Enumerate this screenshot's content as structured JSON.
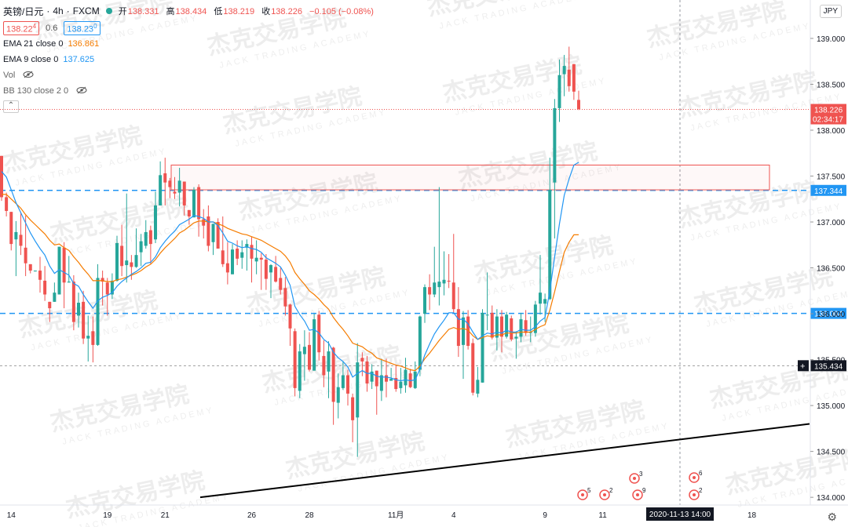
{
  "header": {
    "symbol": "英镑/日元",
    "interval": "4h",
    "source": "FXCM",
    "ohlc": [
      {
        "k": "开",
        "v": "138.331"
      },
      {
        "k": "高",
        "v": "138.434"
      },
      {
        "k": "低",
        "v": "138.219"
      },
      {
        "k": "收",
        "v": "138.226"
      }
    ],
    "change": "−0.105 (−0.08%)",
    "bid": "138.22",
    "bid_sup": "4",
    "spread": "0.6",
    "ask": "138.23",
    "ask_sup": "0"
  },
  "indicators": [
    {
      "name": "EMA 21 close 0",
      "value": "136.861",
      "color": "#f57c00"
    },
    {
      "name": "EMA 9 close 0",
      "value": "137.625",
      "color": "#2196f3"
    },
    {
      "name": "Vol",
      "value": "",
      "color": "#555555"
    },
    {
      "name": "BB 130 close 2 0",
      "value": "",
      "color": "#555555"
    }
  ],
  "currency_label": "JPY",
  "watermark_cn": "杰克交易学院",
  "watermark_en": "JACK TRADING ACADEMY",
  "chart_data": {
    "type": "candlestick",
    "ylim": [
      133.95,
      139.35
    ],
    "yticks": [
      "134.000",
      "134.500",
      "135.000",
      "135.500",
      "136.000",
      "136.500",
      "137.000",
      "137.500",
      "138.000",
      "138.500",
      "139.000"
    ],
    "xticks": [
      {
        "label": "14",
        "i": 2
      },
      {
        "label": "19",
        "i": 22
      },
      {
        "label": "21",
        "i": 34
      },
      {
        "label": "26",
        "i": 52
      },
      {
        "label": "28",
        "i": 64
      },
      {
        "label": "11月",
        "i": 82
      },
      {
        "label": "4",
        "i": 94
      },
      {
        "label": "9",
        "i": 113
      },
      {
        "label": "11",
        "i": 125
      },
      {
        "label": "16",
        "i": 143
      },
      {
        "label": "18",
        "i": 156
      }
    ],
    "ohlc": [
      [
        137.72,
        137.72,
        137.23,
        137.27
      ],
      [
        137.27,
        137.32,
        137.06,
        137.12
      ],
      [
        137.11,
        137.11,
        136.69,
        136.76
      ],
      [
        136.81,
        137.01,
        136.41,
        136.89
      ],
      [
        136.86,
        137.11,
        136.64,
        136.74
      ],
      [
        136.72,
        137.07,
        136.41,
        136.55
      ],
      [
        136.54,
        136.54,
        136.44,
        136.47
      ],
      [
        136.47,
        136.47,
        136.46,
        136.47
      ],
      [
        136.47,
        136.62,
        136.23,
        136.37
      ],
      [
        136.36,
        136.52,
        136.14,
        136.21
      ],
      [
        136.13,
        136.13,
        135.91,
        136.06
      ],
      [
        136.13,
        136.34,
        136.13,
        136.23
      ],
      [
        136.21,
        136.73,
        136.21,
        136.73
      ],
      [
        136.72,
        136.78,
        136.06,
        136.34
      ],
      [
        136.34,
        136.63,
        136.34,
        136.35
      ],
      [
        136.35,
        136.42,
        135.82,
        135.91
      ],
      [
        135.98,
        136.23,
        135.85,
        136.12
      ],
      [
        136.13,
        136.25,
        135.67,
        135.73
      ],
      [
        135.73,
        135.98,
        135.48,
        135.76
      ],
      [
        135.81,
        135.97,
        135.47,
        135.66
      ],
      [
        135.66,
        136.54,
        135.65,
        136.39
      ],
      [
        136.39,
        136.47,
        136.09,
        136.35
      ],
      [
        136.34,
        136.39,
        135.98,
        136.21
      ],
      [
        136.21,
        136.44,
        136.16,
        136.36
      ],
      [
        136.36,
        136.85,
        136.35,
        136.77
      ],
      [
        136.74,
        136.97,
        136.41,
        136.52
      ],
      [
        136.53,
        137.31,
        136.34,
        136.58
      ],
      [
        136.56,
        136.64,
        136.37,
        136.51
      ],
      [
        136.51,
        136.93,
        136.5,
        136.64
      ],
      [
        136.67,
        136.87,
        136.52,
        136.79
      ],
      [
        136.74,
        137.02,
        136.71,
        136.89
      ],
      [
        136.91,
        136.96,
        136.54,
        136.76
      ],
      [
        136.81,
        137.33,
        136.77,
        137.18
      ],
      [
        137.18,
        137.66,
        137.18,
        137.51
      ],
      [
        137.53,
        137.7,
        137.18,
        137.43
      ],
      [
        137.45,
        137.48,
        137.26,
        137.38
      ],
      [
        137.33,
        137.49,
        137.25,
        137.31
      ],
      [
        137.32,
        137.59,
        137.17,
        137.45
      ],
      [
        137.44,
        137.44,
        137.07,
        137.18
      ],
      [
        137.13,
        137.13,
        136.97,
        137.06
      ],
      [
        137.05,
        137.38,
        137.05,
        137.35
      ],
      [
        137.38,
        137.41,
        136.84,
        137.03
      ],
      [
        137.03,
        137.14,
        136.82,
        136.96
      ],
      [
        137.06,
        137.18,
        136.68,
        136.74
      ],
      [
        136.78,
        136.98,
        136.64,
        136.98
      ],
      [
        137.0,
        137.04,
        136.71,
        136.71
      ],
      [
        136.69,
        137.06,
        136.51,
        136.54
      ],
      [
        136.55,
        136.78,
        136.32,
        136.45
      ],
      [
        136.43,
        136.76,
        136.43,
        136.7
      ],
      [
        136.71,
        136.8,
        136.53,
        136.6
      ],
      [
        136.61,
        136.8,
        136.49,
        136.67
      ],
      [
        136.72,
        136.81,
        136.47,
        136.76
      ],
      [
        136.75,
        136.84,
        136.34,
        136.6
      ],
      [
        136.57,
        136.8,
        136.43,
        136.61
      ],
      [
        136.61,
        136.66,
        136.26,
        136.59
      ],
      [
        136.59,
        136.65,
        136.26,
        136.38
      ],
      [
        136.45,
        136.54,
        136.17,
        136.53
      ],
      [
        136.51,
        136.63,
        136.34,
        136.35
      ],
      [
        136.39,
        136.5,
        136.21,
        136.26
      ],
      [
        136.28,
        136.4,
        135.98,
        136.08
      ],
      [
        136.1,
        136.11,
        135.65,
        135.84
      ],
      [
        135.81,
        135.84,
        135.1,
        135.19
      ],
      [
        135.16,
        135.67,
        135.08,
        135.59
      ],
      [
        135.56,
        135.82,
        135.27,
        135.64
      ],
      [
        135.66,
        135.8,
        135.37,
        135.39
      ],
      [
        135.38,
        136.0,
        135.38,
        135.94
      ],
      [
        135.99,
        136.03,
        135.49,
        135.58
      ],
      [
        135.54,
        135.71,
        135.2,
        135.33
      ],
      [
        135.37,
        135.7,
        135.08,
        135.59
      ],
      [
        135.63,
        135.64,
        134.79,
        135.04
      ],
      [
        135.03,
        135.35,
        134.86,
        135.2
      ],
      [
        135.19,
        135.48,
        135.17,
        135.33
      ],
      [
        135.33,
        135.39,
        135.0,
        135.13
      ],
      [
        135.09,
        135.13,
        134.6,
        134.84
      ],
      [
        134.87,
        135.68,
        134.44,
        135.47
      ],
      [
        135.52,
        135.58,
        135.32,
        135.48
      ],
      [
        135.48,
        135.54,
        135.15,
        135.24
      ],
      [
        135.26,
        135.45,
        135.18,
        135.37
      ],
      [
        135.38,
        135.38,
        134.9,
        135.21
      ],
      [
        135.16,
        135.51,
        135.05,
        135.33
      ],
      [
        135.33,
        135.51,
        135.09,
        135.26
      ],
      [
        135.27,
        135.41,
        135.27,
        135.29
      ],
      [
        135.3,
        135.44,
        135.15,
        135.18
      ],
      [
        135.19,
        135.41,
        135.13,
        135.26
      ],
      [
        135.22,
        135.52,
        135.14,
        135.39
      ],
      [
        135.35,
        135.4,
        135.19,
        135.2
      ],
      [
        135.19,
        135.48,
        135.18,
        135.37
      ],
      [
        135.39,
        135.98,
        135.32,
        135.97
      ],
      [
        136.0,
        136.32,
        135.9,
        136.29
      ],
      [
        136.29,
        136.43,
        136.04,
        136.21
      ],
      [
        136.21,
        136.73,
        136.18,
        136.34
      ],
      [
        136.29,
        137.38,
        136.09,
        136.35
      ],
      [
        136.33,
        136.68,
        136.2,
        136.37
      ],
      [
        136.36,
        136.65,
        136.28,
        136.35
      ],
      [
        136.34,
        136.87,
        136.01,
        136.05
      ],
      [
        136.05,
        136.29,
        135.53,
        135.65
      ],
      [
        135.66,
        136.03,
        135.29,
        135.96
      ],
      [
        135.97,
        136.04,
        135.61,
        135.65
      ],
      [
        135.68,
        135.73,
        135.11,
        135.14
      ],
      [
        135.13,
        135.42,
        135.09,
        135.28
      ],
      [
        135.25,
        136.05,
        135.25,
        136.01
      ],
      [
        135.99,
        136.45,
        135.82,
        135.99
      ],
      [
        136.01,
        136.09,
        135.72,
        135.74
      ],
      [
        135.74,
        136.05,
        135.6,
        135.97
      ],
      [
        135.97,
        136.04,
        135.58,
        135.75
      ],
      [
        135.75,
        136.02,
        135.73,
        135.99
      ],
      [
        135.95,
        135.98,
        135.7,
        135.72
      ],
      [
        135.73,
        135.81,
        135.51,
        135.75
      ],
      [
        135.75,
        136.01,
        135.69,
        135.94
      ],
      [
        135.93,
        136.04,
        135.76,
        135.79
      ],
      [
        135.79,
        135.97,
        135.69,
        135.8
      ],
      [
        135.79,
        136.14,
        135.75,
        136.1
      ],
      [
        136.11,
        136.64,
        135.99,
        136.23
      ],
      [
        136.11,
        136.22,
        135.91,
        136.16
      ],
      [
        136.16,
        137.7,
        136.15,
        137.35
      ],
      [
        137.43,
        138.34,
        136.82,
        138.24
      ],
      [
        138.24,
        138.77,
        138.09,
        138.6
      ],
      [
        138.61,
        138.82,
        138.37,
        138.7
      ],
      [
        138.66,
        138.91,
        138.42,
        138.48
      ],
      [
        138.72,
        138.72,
        138.33,
        138.42
      ],
      [
        138.33,
        138.43,
        138.22,
        138.23
      ]
    ],
    "ema9": [
      137.55,
      137.49,
      137.35,
      137.21,
      137.1,
      136.99,
      136.88,
      136.79,
      136.71,
      136.64,
      136.52,
      136.44,
      136.48,
      136.45,
      136.42,
      136.33,
      136.3,
      136.21,
      136.13,
      136.06,
      136.14,
      136.18,
      136.2,
      136.23,
      136.3,
      136.35,
      136.39,
      136.43,
      136.46,
      136.5,
      136.55,
      136.56,
      136.62,
      136.72,
      136.79,
      136.85,
      136.9,
      136.97,
      137.0,
      137.03,
      137.07,
      137.06,
      137.04,
      137.0,
      137.0,
      136.96,
      136.88,
      136.79,
      136.77,
      136.74,
      136.72,
      136.73,
      136.71,
      136.7,
      136.67,
      136.61,
      136.58,
      136.55,
      136.51,
      136.42,
      136.31,
      136.08,
      135.99,
      135.92,
      135.82,
      135.83,
      135.79,
      135.72,
      135.68,
      135.58,
      135.52,
      135.48,
      135.42,
      135.31,
      135.35,
      135.38,
      135.35,
      135.35,
      135.32,
      135.31,
      135.31,
      135.3,
      135.28,
      135.27,
      135.28,
      135.27,
      135.28,
      135.4,
      135.55,
      135.67,
      135.78,
      135.86,
      135.93,
      136.01,
      136.01,
      135.94,
      135.94,
      135.89,
      135.8,
      135.72,
      135.76,
      135.79,
      135.78,
      135.8,
      135.79,
      135.82,
      135.8,
      135.8,
      135.83,
      135.82,
      135.82,
      135.86,
      135.92,
      135.96,
      136.25,
      136.62,
      136.98,
      137.29,
      137.47,
      137.62,
      137.65
    ],
    "ema21": [
      137.3,
      137.3,
      137.25,
      137.2,
      137.15,
      137.08,
      137.02,
      136.97,
      136.92,
      136.87,
      136.8,
      136.75,
      136.76,
      136.72,
      136.69,
      136.62,
      136.56,
      136.49,
      136.43,
      136.36,
      136.36,
      136.36,
      136.35,
      136.35,
      136.37,
      136.38,
      136.4,
      136.42,
      136.44,
      136.47,
      136.51,
      136.54,
      136.59,
      136.66,
      136.72,
      136.77,
      136.82,
      136.88,
      136.91,
      136.95,
      136.99,
      137.01,
      137.01,
      137.0,
      137.0,
      136.98,
      136.96,
      136.93,
      136.91,
      136.89,
      136.87,
      136.86,
      136.84,
      136.82,
      136.8,
      136.77,
      136.74,
      136.71,
      136.68,
      136.63,
      136.56,
      136.45,
      136.38,
      136.32,
      136.25,
      136.21,
      136.16,
      136.1,
      136.05,
      135.96,
      135.89,
      135.83,
      135.76,
      135.68,
      135.66,
      135.64,
      135.6,
      135.57,
      135.52,
      135.5,
      135.48,
      135.46,
      135.44,
      135.43,
      135.41,
      135.39,
      135.38,
      135.43,
      135.51,
      135.57,
      135.64,
      135.71,
      135.77,
      135.83,
      135.85,
      135.83,
      135.84,
      135.82,
      135.76,
      135.72,
      135.74,
      135.76,
      135.75,
      135.77,
      135.77,
      135.79,
      135.79,
      135.79,
      135.8,
      135.8,
      135.8,
      135.83,
      135.86,
      135.88,
      136.04,
      136.24,
      136.46,
      136.67,
      136.78,
      136.86,
      136.86
    ],
    "hlines": [
      {
        "label": "137.344"
      },
      {
        "label": "136.004"
      },
      {
        "label": "135.434"
      }
    ],
    "current_price_label": "138.226",
    "countdown_label": "02:34:17",
    "crosshair_time_label": "2020-11-13 14:00",
    "resistance_zone": [
      137.35,
      137.62
    ],
    "trendline": [
      [
        255,
        134.0
      ],
      [
        1031,
        134.8
      ]
    ],
    "events": [
      {
        "count": "5",
        "flags": 1
      },
      {
        "count": "2",
        "flags": 1
      },
      {
        "count": "3",
        "flags": 2
      },
      {
        "count": "9",
        "flags": 2
      },
      {
        "count": "6",
        "flags": 1
      },
      {
        "count": "2",
        "flags": 1
      }
    ]
  }
}
